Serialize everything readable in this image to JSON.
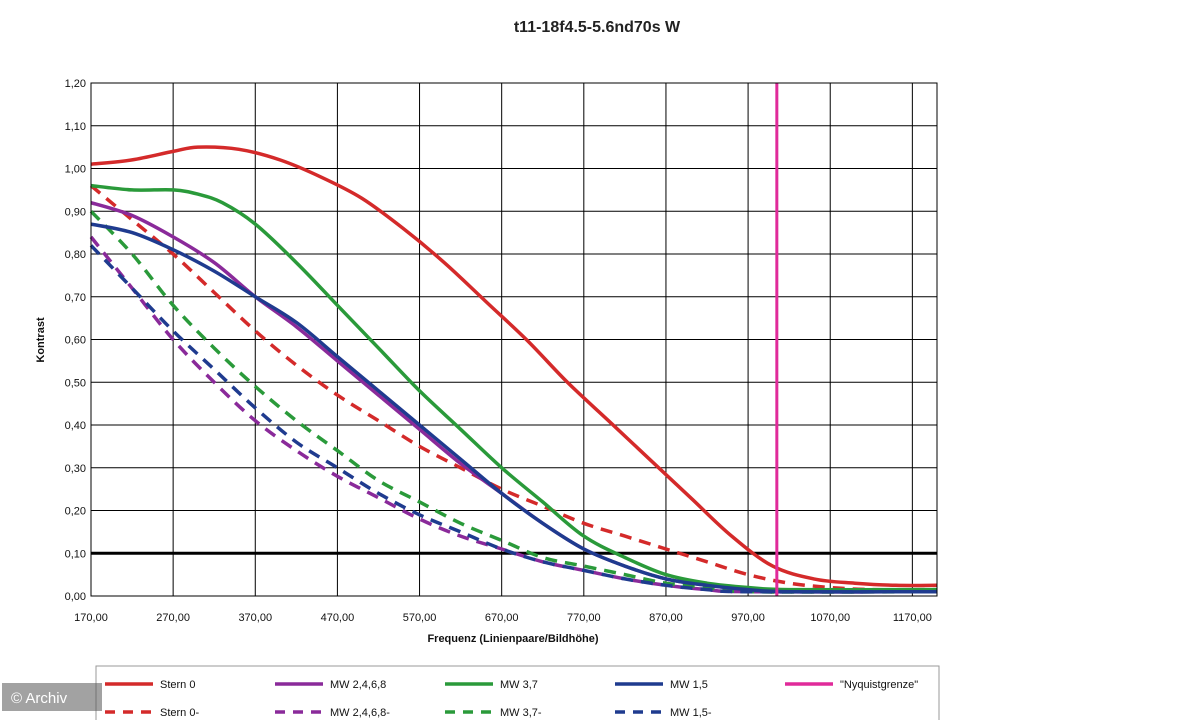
{
  "chart_data": {
    "type": "line",
    "title": "t11-18f4.5-5.6nd70s W",
    "xlabel": "Frequenz (Linienpaare/Bildhöhe)",
    "ylabel": "Kontrast",
    "xlim": [
      170,
      1200
    ],
    "ylim": [
      0,
      1.2
    ],
    "x_ticks": [
      "170,00",
      "270,00",
      "370,00",
      "470,00",
      "570,00",
      "670,00",
      "770,00",
      "870,00",
      "970,00",
      "1070,00",
      "1170,00"
    ],
    "y_ticks": [
      "0,00",
      "0,10",
      "0,20",
      "0,30",
      "0,40",
      "0,50",
      "0,60",
      "0,70",
      "0,80",
      "0,90",
      "1,00",
      "1,10",
      "1,20"
    ],
    "grid": true,
    "legend_position": "bottom",
    "reference_line": {
      "y": 0.1,
      "color": "#000000"
    },
    "series": [
      {
        "name": "Stern 0",
        "color": "#d42a2a",
        "dash": false,
        "x": [
          170,
          220,
          270,
          300,
          350,
          400,
          450,
          500,
          550,
          600,
          650,
          700,
          750,
          800,
          850,
          900,
          950,
          1000,
          1050,
          1100,
          1150,
          1200
        ],
        "y": [
          1.01,
          1.02,
          1.04,
          1.05,
          1.045,
          1.02,
          0.98,
          0.93,
          0.86,
          0.78,
          0.69,
          0.6,
          0.5,
          0.41,
          0.32,
          0.23,
          0.14,
          0.07,
          0.04,
          0.03,
          0.025,
          0.025
        ]
      },
      {
        "name": "Stern 0-",
        "color": "#d42a2a",
        "dash": true,
        "x": [
          170,
          220,
          270,
          320,
          370,
          420,
          470,
          520,
          570,
          620,
          670,
          720,
          770,
          820,
          870,
          920,
          970,
          1020,
          1070,
          1120,
          1200
        ],
        "y": [
          0.96,
          0.88,
          0.8,
          0.71,
          0.62,
          0.54,
          0.47,
          0.41,
          0.35,
          0.3,
          0.25,
          0.21,
          0.17,
          0.14,
          0.11,
          0.08,
          0.05,
          0.03,
          0.02,
          0.015,
          0.015
        ]
      },
      {
        "name": "MW 2,4,6,8",
        "color": "#8a2a9a",
        "dash": false,
        "x": [
          170,
          220,
          270,
          320,
          370,
          420,
          470,
          520,
          570,
          620,
          670,
          720,
          770,
          820,
          870,
          920,
          970,
          1020,
          1200
        ],
        "y": [
          0.92,
          0.89,
          0.84,
          0.78,
          0.7,
          0.63,
          0.55,
          0.47,
          0.39,
          0.31,
          0.24,
          0.17,
          0.11,
          0.07,
          0.04,
          0.025,
          0.015,
          0.01,
          0.01
        ]
      },
      {
        "name": "MW 2,4,6,8-",
        "color": "#8a2a9a",
        "dash": true,
        "x": [
          170,
          220,
          270,
          320,
          370,
          420,
          470,
          520,
          570,
          620,
          670,
          720,
          770,
          820,
          870,
          920,
          970,
          1200
        ],
        "y": [
          0.84,
          0.72,
          0.6,
          0.5,
          0.41,
          0.34,
          0.28,
          0.23,
          0.18,
          0.14,
          0.11,
          0.08,
          0.06,
          0.04,
          0.025,
          0.015,
          0.01,
          0.01
        ]
      },
      {
        "name": "MW 3,7",
        "color": "#2a9a3a",
        "dash": false,
        "x": [
          170,
          220,
          270,
          300,
          330,
          370,
          420,
          470,
          520,
          570,
          620,
          670,
          720,
          770,
          820,
          870,
          920,
          970,
          1020,
          1200
        ],
        "y": [
          0.96,
          0.95,
          0.95,
          0.94,
          0.92,
          0.87,
          0.78,
          0.68,
          0.58,
          0.48,
          0.39,
          0.3,
          0.22,
          0.14,
          0.09,
          0.05,
          0.03,
          0.02,
          0.015,
          0.015
        ]
      },
      {
        "name": "MW 3,7-",
        "color": "#2a9a3a",
        "dash": true,
        "x": [
          170,
          220,
          270,
          320,
          370,
          420,
          470,
          520,
          570,
          620,
          670,
          720,
          770,
          820,
          870,
          920,
          970,
          1200
        ],
        "y": [
          0.9,
          0.8,
          0.68,
          0.58,
          0.49,
          0.41,
          0.34,
          0.27,
          0.22,
          0.17,
          0.13,
          0.09,
          0.07,
          0.05,
          0.03,
          0.02,
          0.01,
          0.01
        ]
      },
      {
        "name": "MW 1,5",
        "color": "#1f3b8f",
        "dash": false,
        "x": [
          170,
          220,
          270,
          320,
          370,
          420,
          470,
          520,
          570,
          620,
          670,
          720,
          770,
          820,
          870,
          920,
          970,
          1020,
          1200
        ],
        "y": [
          0.87,
          0.85,
          0.81,
          0.76,
          0.7,
          0.64,
          0.56,
          0.48,
          0.4,
          0.32,
          0.24,
          0.17,
          0.11,
          0.07,
          0.04,
          0.025,
          0.015,
          0.01,
          0.01
        ]
      },
      {
        "name": "MW 1,5-",
        "color": "#1f3b8f",
        "dash": true,
        "x": [
          170,
          220,
          270,
          320,
          370,
          420,
          470,
          520,
          570,
          620,
          670,
          720,
          770,
          820,
          870,
          920,
          970,
          1200
        ],
        "y": [
          0.82,
          0.72,
          0.62,
          0.53,
          0.44,
          0.36,
          0.3,
          0.24,
          0.19,
          0.15,
          0.11,
          0.08,
          0.06,
          0.04,
          0.025,
          0.015,
          0.01,
          0.01
        ]
      },
      {
        "name": "\"Nyquistgrenze\"",
        "color": "#e02a9a",
        "dash": false,
        "vertical_x": 1005
      }
    ]
  },
  "watermark": "© Archiv"
}
